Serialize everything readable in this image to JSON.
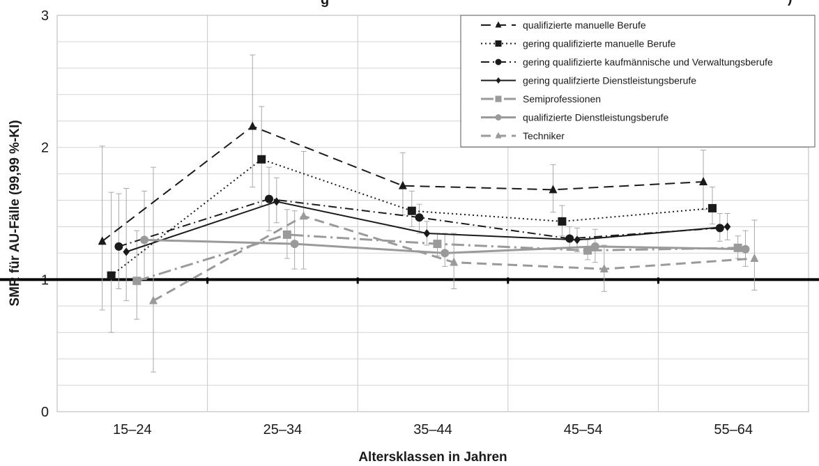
{
  "chart_data": {
    "type": "line",
    "title_fragment_left": "g",
    "title_fragment_right": ")",
    "xlabel": "Altersklassen in Jahren",
    "ylabel": "SMR für AU-Fälle (99,99 %-KI)",
    "categories": [
      "15–24",
      "25–34",
      "35–44",
      "45–54",
      "55–64"
    ],
    "ylim": [
      0,
      3
    ],
    "yticks": [
      "0",
      "1",
      "2",
      "3"
    ],
    "reference_line": 1,
    "grid": true,
    "legend_position": "top-right",
    "series": [
      {
        "name": "qualifizierte manuelle Berufe",
        "marker": "triangle",
        "dash": "dash",
        "color": "#1a1a1a",
        "offset": -0.2,
        "values": [
          1.29,
          2.16,
          1.71,
          1.68,
          1.74
        ],
        "ci_low": [
          0.77,
          1.7,
          1.49,
          1.51,
          1.53
        ],
        "ci_high": [
          2.01,
          2.7,
          1.96,
          1.87,
          1.98
        ]
      },
      {
        "name": "gering qualifizierte manuelle Berufe",
        "marker": "square",
        "dash": "dot",
        "color": "#1a1a1a",
        "offset": -0.14,
        "values": [
          1.03,
          1.91,
          1.52,
          1.44,
          1.54
        ],
        "ci_low": [
          0.6,
          1.56,
          1.4,
          1.33,
          1.42
        ],
        "ci_high": [
          1.66,
          2.31,
          1.67,
          1.56,
          1.7
        ]
      },
      {
        "name": "gering qualifizierte kaufmännische und Verwaltungsberufe",
        "marker": "circle",
        "dash": "dashdot",
        "color": "#1a1a1a",
        "offset": -0.09,
        "values": [
          1.25,
          1.61,
          1.47,
          1.31,
          1.39
        ],
        "ci_low": [
          0.93,
          1.37,
          1.35,
          1.22,
          1.29
        ],
        "ci_high": [
          1.65,
          1.85,
          1.57,
          1.4,
          1.5
        ]
      },
      {
        "name": "gering qualifzierte Dienstleistungsberufe",
        "marker": "diamond",
        "dash": "solid",
        "color": "#1a1a1a",
        "offset": -0.04,
        "values": [
          1.21,
          1.59,
          1.35,
          1.3,
          1.4
        ],
        "ci_low": [
          0.84,
          1.43,
          1.26,
          1.21,
          1.3
        ],
        "ci_high": [
          1.69,
          1.77,
          1.44,
          1.39,
          1.5
        ]
      },
      {
        "name": "Semiprofessionen",
        "marker": "square",
        "dash": "longdashdot",
        "color": "#9a9a9a",
        "offset": 0.03,
        "values": [
          0.99,
          1.34,
          1.27,
          1.22,
          1.24
        ],
        "ci_low": [
          0.7,
          1.16,
          1.18,
          1.15,
          1.16
        ],
        "ci_high": [
          1.37,
          1.53,
          1.35,
          1.3,
          1.33
        ]
      },
      {
        "name": "qualifizierte Dienstleistungsberufe",
        "marker": "circle",
        "dash": "solid",
        "color": "#9a9a9a",
        "offset": 0.08,
        "values": [
          1.3,
          1.27,
          1.2,
          1.25,
          1.23
        ],
        "ci_low": [
          1.0,
          1.08,
          1.1,
          1.13,
          1.1
        ],
        "ci_high": [
          1.67,
          1.52,
          1.35,
          1.38,
          1.37
        ]
      },
      {
        "name": "Techniker",
        "marker": "triangle",
        "dash": "dash",
        "color": "#9a9a9a",
        "offset": 0.14,
        "values": [
          0.84,
          1.48,
          1.13,
          1.08,
          1.16
        ],
        "ci_low": [
          0.3,
          1.08,
          0.93,
          0.91,
          0.92
        ],
        "ci_high": [
          1.85,
          1.97,
          1.35,
          1.26,
          1.45
        ]
      }
    ]
  }
}
